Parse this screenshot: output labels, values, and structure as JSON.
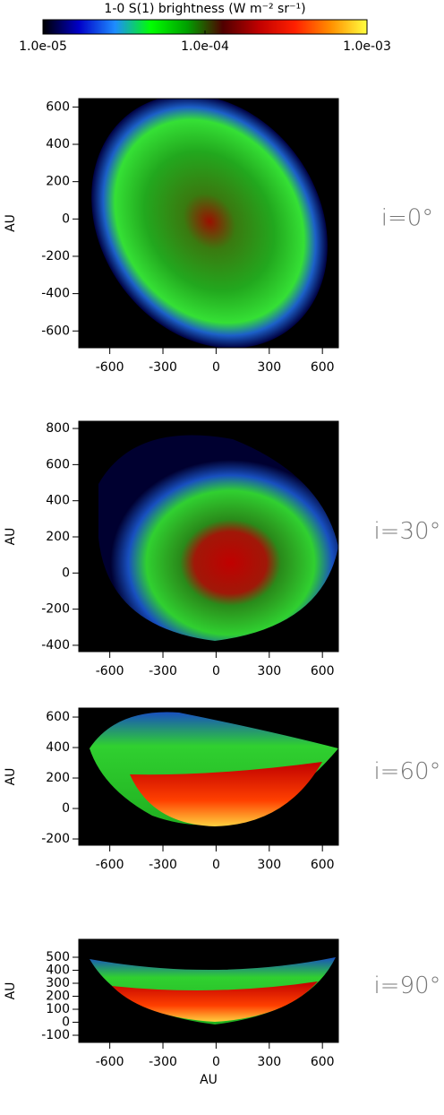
{
  "chart_data": [
    {
      "type": "colorbar",
      "title": "1-0 S(1) brightness (W m⁻² sr⁻¹)",
      "log_scale": true,
      "xlim": [
        1e-05,
        0.001
      ],
      "xticks": [
        {
          "value": 1e-05,
          "label": "1.0e-05"
        },
        {
          "value": 0.0001,
          "label": "1.0e-04"
        },
        {
          "value": 0.001,
          "label": "1.0e-03"
        }
      ],
      "colors": [
        "#000000",
        "#0000c8",
        "#1e8cff",
        "#00ff00",
        "#00a000",
        "#500000",
        "#c00000",
        "#ff2000",
        "#ff9000",
        "#ffff40"
      ]
    },
    {
      "type": "image",
      "annotation": "i=0°",
      "ylabel": "AU",
      "xlim": [
        -775,
        690
      ],
      "xticks": [
        -600,
        -300,
        0,
        300,
        600
      ],
      "ylim": [
        -690,
        645
      ],
      "yticks": [
        -600,
        -400,
        -200,
        0,
        200,
        400,
        600
      ]
    },
    {
      "type": "image",
      "annotation": "i=30°",
      "ylabel": "AU",
      "xlim": [
        -775,
        690
      ],
      "xticks": [
        -600,
        -300,
        0,
        300,
        600
      ],
      "ylim": [
        -435,
        840
      ],
      "yticks": [
        -400,
        -200,
        0,
        200,
        400,
        600,
        800
      ]
    },
    {
      "type": "image",
      "annotation": "i=60°",
      "ylabel": "AU",
      "xlim": [
        -775,
        690
      ],
      "xticks": [
        -600,
        -300,
        0,
        300,
        600
      ],
      "ylim": [
        -241,
        659
      ],
      "yticks": [
        -200,
        0,
        200,
        400,
        600
      ]
    },
    {
      "type": "image",
      "annotation": "i=90°",
      "ylabel": "AU",
      "xlabel": "AU",
      "xlim": [
        -775,
        690
      ],
      "xticks": [
        -600,
        -300,
        0,
        300,
        600
      ],
      "ylim": [
        -155,
        638
      ],
      "yticks": [
        -100,
        0,
        100,
        200,
        300,
        400,
        500
      ]
    }
  ]
}
